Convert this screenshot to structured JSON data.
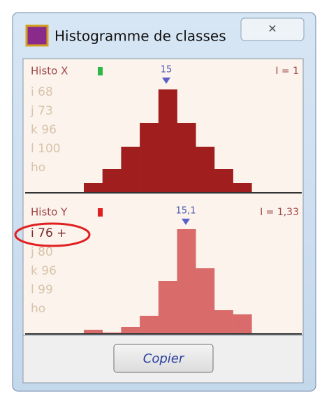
{
  "window": {
    "title": "Histogramme de classes",
    "close": "✕"
  },
  "panels": [
    {
      "name": "Histo X",
      "mean_label": "15",
      "index_label": "I = 1",
      "stats": [
        "i 68",
        "j 73",
        "k 96",
        "l 100",
        "ho"
      ],
      "bars": [
        14,
        34,
        66,
        100,
        148,
        100,
        66,
        34,
        14
      ],
      "color": "#a01e1e",
      "indicator_color": "#2fb84a"
    },
    {
      "name": "Histo Y",
      "mean_label": "15,1",
      "index_label": "I = 1,33",
      "stats": [
        "i 76 +",
        "j 80",
        "k 96",
        "l 99",
        "ho"
      ],
      "bars": [
        6,
        2,
        10,
        26,
        76,
        150,
        94,
        34,
        28
      ],
      "color": "#d96b6b",
      "indicator_color": "#e02020"
    }
  ],
  "button": "Copier"
}
